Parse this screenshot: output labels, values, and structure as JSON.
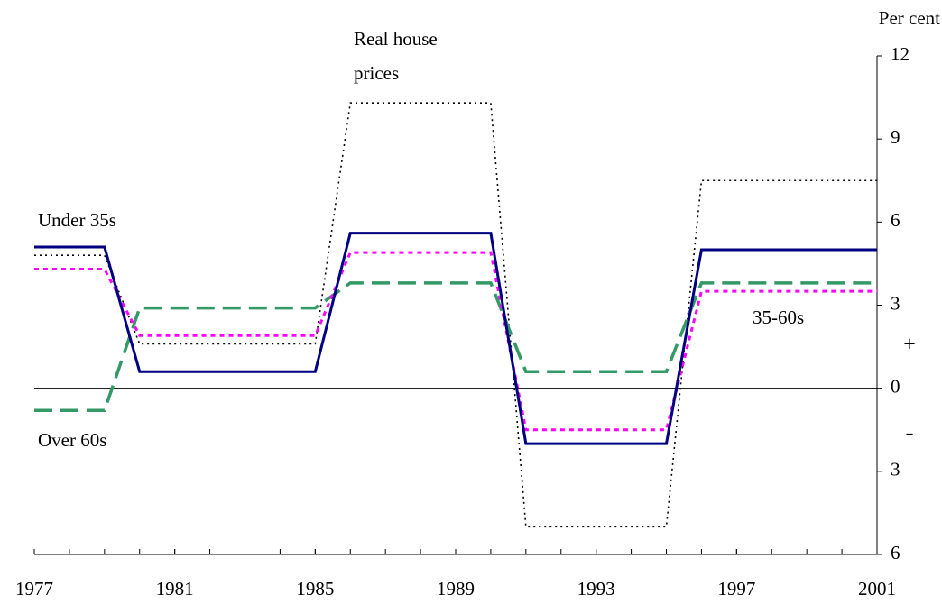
{
  "chart_data": {
    "type": "line",
    "y_axis_label": "Per cent",
    "x": [
      1977,
      1978,
      1979,
      1980,
      1981,
      1982,
      1983,
      1984,
      1985,
      1986,
      1987,
      1988,
      1989,
      1990,
      1991,
      1992,
      1993,
      1994,
      1995,
      1996,
      1997,
      1998,
      1999,
      2000,
      2001
    ],
    "xlim": [
      1977,
      2001
    ],
    "xticks": [
      1977,
      1981,
      1985,
      1989,
      1993,
      1997,
      2001
    ],
    "ylim": [
      -6,
      12
    ],
    "yticks": [
      12,
      9,
      6,
      3,
      0,
      {
        "value": -3,
        "label": "3"
      },
      {
        "value": -6,
        "label": "6"
      }
    ],
    "annotations": {
      "positive": "+",
      "negative": "-"
    },
    "series": [
      {
        "name": "Real house prices",
        "color": "#000000",
        "values": [
          4.8,
          4.8,
          4.8,
          1.6,
          1.6,
          1.6,
          1.6,
          1.6,
          1.6,
          10.3,
          10.3,
          10.3,
          10.3,
          10.3,
          -5.0,
          -5.0,
          -5.0,
          -5.0,
          -5.0,
          7.5,
          7.5,
          7.5,
          7.5,
          7.5,
          7.5
        ]
      },
      {
        "name": "Over 60s",
        "color": "#339966",
        "values": [
          -0.8,
          -0.8,
          -0.8,
          2.9,
          2.9,
          2.9,
          2.9,
          2.9,
          2.9,
          3.8,
          3.8,
          3.8,
          3.8,
          3.8,
          0.6,
          0.6,
          0.6,
          0.6,
          0.6,
          3.8,
          3.8,
          3.8,
          3.8,
          3.8,
          3.8
        ]
      },
      {
        "name": "35-60s",
        "color": "#ff00ff",
        "values": [
          4.3,
          4.3,
          4.3,
          1.9,
          1.9,
          1.9,
          1.9,
          1.9,
          1.9,
          4.9,
          4.9,
          4.9,
          4.9,
          4.9,
          -1.5,
          -1.5,
          -1.5,
          -1.5,
          -1.5,
          3.5,
          3.5,
          3.5,
          3.5,
          3.5,
          3.5
        ]
      },
      {
        "name": "Under 35s",
        "color": "#000080",
        "values": [
          5.1,
          5.1,
          5.1,
          0.6,
          0.6,
          0.6,
          0.6,
          0.6,
          0.6,
          5.6,
          5.6,
          5.6,
          5.6,
          5.6,
          -2.0,
          -2.0,
          -2.0,
          -2.0,
          -2.0,
          5.0,
          5.0,
          5.0,
          5.0,
          5.0,
          5.0
        ]
      }
    ]
  }
}
